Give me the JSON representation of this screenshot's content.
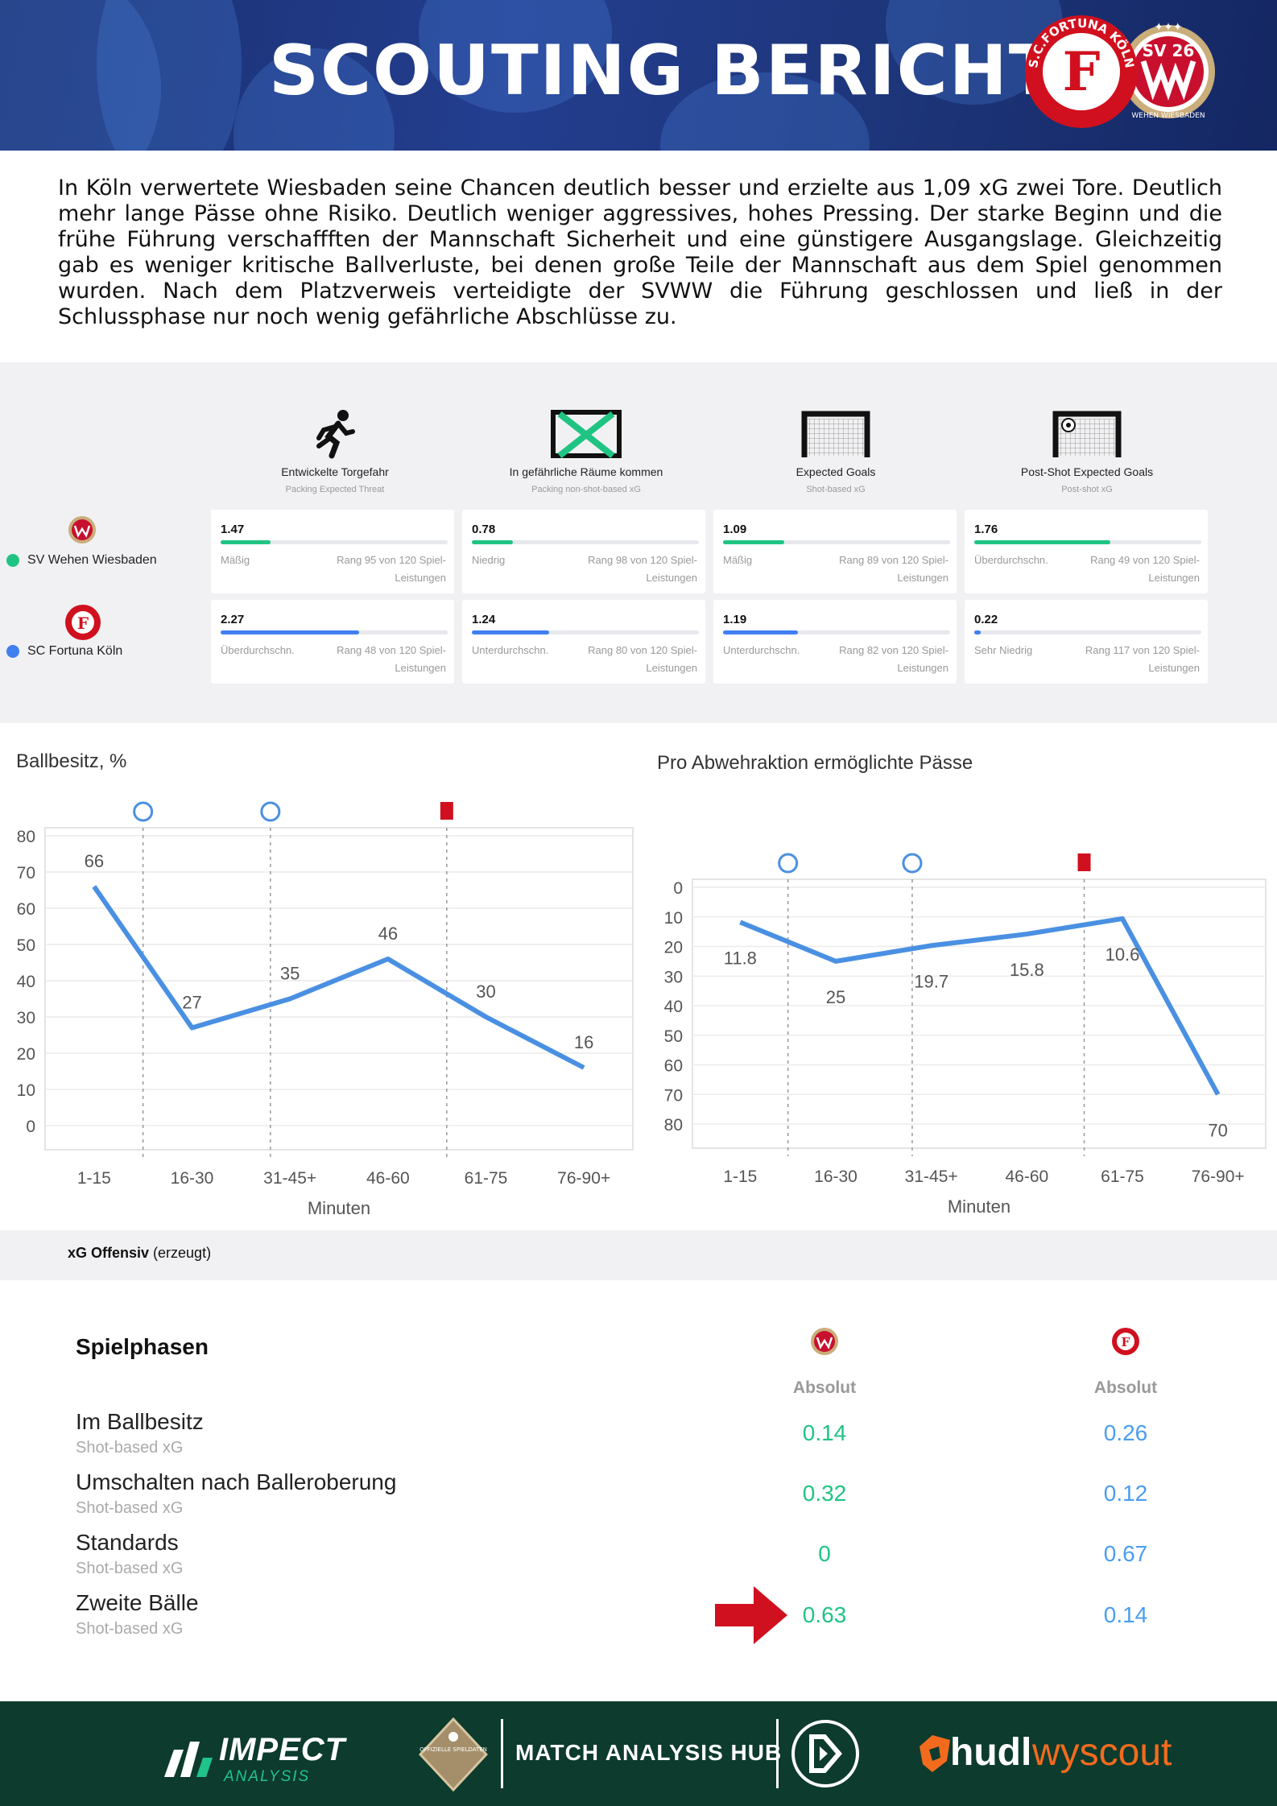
{
  "header": {
    "title": "SCOUTING BERICHT",
    "logo_fortuna_text": "S.C.FORTUNA KÖLN",
    "logo_svww_text": "SV 26",
    "logo_svww_ring": "WEHEN WIESBADEN"
  },
  "intro": "In Köln verwertete Wiesbaden seine Chancen deutlich besser und erzielte aus 1,09 xG zwei Tore. Deutlich mehr lange Pässe ohne Risiko. Deutlich weniger aggressives, hohes Pressing. Der starke Beginn und die frühe Führung verschaffften der Mannschaft Sicherheit und eine günstigere Ausgangslage. Gleichzeitig gab es weniger kritische Ballverluste, bei denen große Teile der Mannschaft aus dem Spiel genommen wurden. Nach dem Platzverweis verteidigte der SVWW die Führung geschlossen und ließ in der Schlussphase nur noch wenig gefährliche Abschlüsse zu.",
  "metrics": [
    {
      "title": "Entwickelte Torgefahr",
      "sub": "Packing Expected Threat",
      "icon": "running-player-icon"
    },
    {
      "title": "In gefährliche Räume kommen",
      "sub": "Packing non-shot-based xG",
      "icon": "crossed-goal-icon"
    },
    {
      "title": "Expected Goals",
      "sub": "Shot-based xG",
      "icon": "goal-icon"
    },
    {
      "title": "Post-Shot Expected Goals",
      "sub": "Post-shot xG",
      "icon": "goal-with-ball-icon"
    }
  ],
  "teams": [
    {
      "name": "SV Wehen Wiesbaden",
      "color": "#1fc483",
      "cards": [
        {
          "value": "1.47",
          "fill": 0.22,
          "level": "Mäßig",
          "rank": "Rang 95 von 120 Spiel-Leistungen"
        },
        {
          "value": "0.78",
          "fill": 0.18,
          "level": "Niedrig",
          "rank": "Rang 98 von 120 Spiel-Leistungen"
        },
        {
          "value": "1.09",
          "fill": 0.27,
          "level": "Mäßig",
          "rank": "Rang 89 von 120 Spiel-Leistungen"
        },
        {
          "value": "1.76",
          "fill": 0.6,
          "level": "Überdurchschn.",
          "rank": "Rang 49 von 120 Spiel-Leistungen"
        }
      ]
    },
    {
      "name": "SC Fortuna Köln",
      "color": "#3f7ff0",
      "cards": [
        {
          "value": "2.27",
          "fill": 0.61,
          "level": "Überdurchschn.",
          "rank": "Rang 48 von 120 Spiel-Leistungen"
        },
        {
          "value": "1.24",
          "fill": 0.34,
          "level": "Unterdurchschn.",
          "rank": "Rang 80 von 120 Spiel-Leistungen"
        },
        {
          "value": "1.19",
          "fill": 0.33,
          "level": "Unterdurchschn.",
          "rank": "Rang 82 von 120 Spiel-Leistungen"
        },
        {
          "value": "0.22",
          "fill": 0.03,
          "level": "Sehr Niedrig",
          "rank": "Rang 117 von 120 Spiel-Leistungen"
        }
      ]
    }
  ],
  "chart_data": [
    {
      "type": "line",
      "title": "Ballbesitz, %",
      "xlabel": "Minuten",
      "ylabel": "",
      "categories": [
        "1-15",
        "16-30",
        "31-45+",
        "46-60",
        "61-75",
        "76-90+"
      ],
      "values": [
        66,
        27,
        35,
        46,
        30,
        16
      ],
      "ylim": [
        0,
        80
      ],
      "yticks": [
        0,
        10,
        20,
        30,
        40,
        50,
        60,
        70,
        80
      ],
      "color": "#4a90e2",
      "events": [
        {
          "type": "goal",
          "icon": "football-icon",
          "position": 0.5
        },
        {
          "type": "goal",
          "icon": "football-icon",
          "position": 1.8
        },
        {
          "type": "red-card",
          "icon": "red-card-icon",
          "position": 3.6
        }
      ]
    },
    {
      "type": "line",
      "title": "Pro Abwehraktion ermöglichte Pässe",
      "xlabel": "Minuten",
      "ylabel": "",
      "categories": [
        "1-15",
        "16-30",
        "31-45+",
        "46-60",
        "61-75",
        "76-90+"
      ],
      "values": [
        11.8,
        25,
        19.7,
        15.8,
        10.6,
        70
      ],
      "ylim": [
        0,
        80
      ],
      "inverted": true,
      "yticks": [
        0,
        10,
        20,
        30,
        40,
        50,
        60,
        70,
        80
      ],
      "color": "#4a90e2",
      "events": [
        {
          "type": "goal",
          "icon": "football-icon",
          "position": 0.5
        },
        {
          "type": "goal",
          "icon": "football-icon",
          "position": 1.8
        },
        {
          "type": "red-card",
          "icon": "red-card-icon",
          "position": 3.6
        }
      ]
    }
  ],
  "xg_strip": {
    "bold": "xG Offensiv",
    "rest": " (erzeugt)"
  },
  "phases": {
    "title": "Spielphasen",
    "col_head": "Absolut",
    "rows": [
      {
        "label": "Im Ballbesitz",
        "sub": "Shot-based xG",
        "svww": "0.14",
        "fortuna": "0.26"
      },
      {
        "label": "Umschalten nach Balleroberung",
        "sub": "Shot-based xG",
        "svww": "0.32",
        "fortuna": "0.12"
      },
      {
        "label": "Standards",
        "sub": "Shot-based xG",
        "svww": "0",
        "fortuna": "0.67"
      },
      {
        "label": "Zweite Bälle",
        "sub": "Shot-based xG",
        "svww": "0.63",
        "fortuna": "0.14",
        "highlight": true
      }
    ]
  },
  "footer": {
    "impect": "IMPECT",
    "impect_sub": "ANALYSIS",
    "badge_text": "OFFIZIELLE SPIELDATEN",
    "mah": "MATCH ANALYSIS HUB",
    "hudl": "hudl",
    "wyscout": "wyscout"
  }
}
